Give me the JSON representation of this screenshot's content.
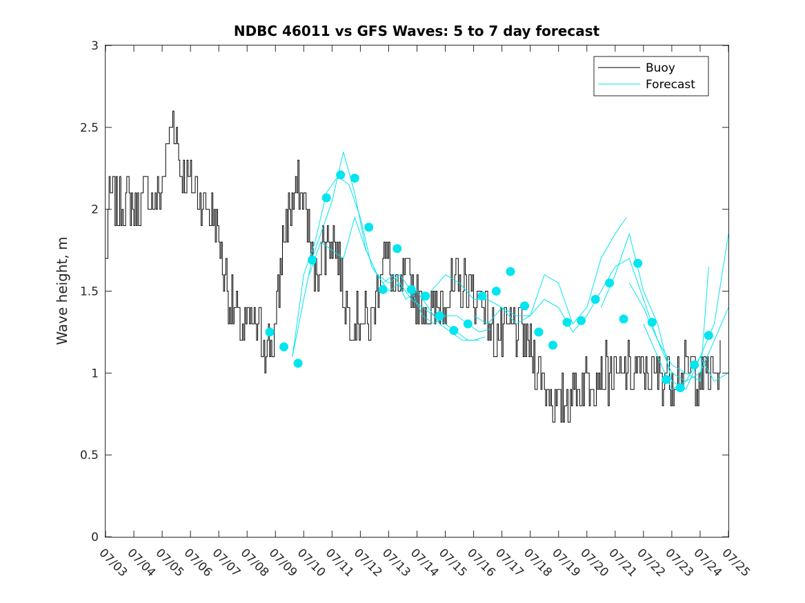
{
  "chart_data": {
    "type": "line",
    "title": "NDBC 46011 vs GFS Waves: 5 to 7 day forecast",
    "xlabel": "",
    "ylabel": "Wave height, m",
    "xlim": [
      "07/03",
      "07/25"
    ],
    "ylim": [
      0,
      3
    ],
    "x_tick_labels": [
      "07/03",
      "07/04",
      "07/05",
      "07/06",
      "07/07",
      "07/08",
      "07/09",
      "07/10",
      "07/11",
      "07/12",
      "07/13",
      "07/14",
      "07/15",
      "07/16",
      "07/17",
      "07/18",
      "07/19",
      "07/20",
      "07/21",
      "07/22",
      "07/23",
      "07/24",
      "07/25"
    ],
    "y_ticks": [
      0,
      0.5,
      1,
      1.5,
      2,
      2.5,
      3
    ],
    "y_tick_labels": [
      "0",
      "0.5",
      "1",
      "1.5",
      "2",
      "2.5",
      "3"
    ],
    "grid": false,
    "legend": {
      "placement": "top-right",
      "entries": [
        "Buoy",
        "Forecast"
      ]
    },
    "colors": {
      "buoy": "#000000",
      "forecast": "#00e5ee",
      "axes": "#262626"
    },
    "buoy_keypoints": {
      "x_days": [
        0,
        0.1,
        0.25,
        0.5,
        0.75,
        1.0,
        1.2,
        1.5,
        1.75,
        2.0,
        2.2,
        2.4,
        2.5,
        2.6,
        2.75,
        3.0,
        3.25,
        3.5,
        3.75,
        4.0,
        4.2,
        4.4,
        4.6,
        4.8,
        5.0,
        5.2,
        5.4,
        5.6,
        5.8,
        6.0,
        6.2,
        6.4,
        6.6,
        6.8,
        7.0,
        7.2,
        7.4,
        7.6,
        7.8,
        8.0,
        8.2,
        8.4,
        8.6,
        8.8,
        9.0,
        9.2,
        9.4,
        9.6,
        9.8,
        10.0,
        10.3,
        10.6,
        11.0,
        11.3,
        11.6,
        12.0,
        12.3,
        12.6,
        13.0,
        13.3,
        13.6,
        14.0,
        14.3,
        14.6,
        15.0,
        15.3,
        15.6,
        16.0,
        16.3,
        16.6,
        17.0,
        17.3,
        17.6,
        18.0,
        18.3,
        18.6,
        19.0,
        19.3,
        19.6,
        20.0,
        20.3,
        20.6,
        21.0,
        21.3,
        21.6,
        22.0
      ],
      "y": [
        1.65,
        2.0,
        2.1,
        2.0,
        2.1,
        2.0,
        2.05,
        2.1,
        2.0,
        2.15,
        2.4,
        2.55,
        2.45,
        2.3,
        2.2,
        2.15,
        2.1,
        2.05,
        2.0,
        1.8,
        1.6,
        1.45,
        1.35,
        1.25,
        1.3,
        1.3,
        1.25,
        1.2,
        1.15,
        1.25,
        1.7,
        1.95,
        2.05,
        2.1,
        2.05,
        1.8,
        1.6,
        1.75,
        1.8,
        1.85,
        1.7,
        1.5,
        1.35,
        1.3,
        1.35,
        1.3,
        1.3,
        1.55,
        1.75,
        1.65,
        1.45,
        1.6,
        1.45,
        1.4,
        1.35,
        1.5,
        1.5,
        1.55,
        1.45,
        1.5,
        1.25,
        1.2,
        1.3,
        1.25,
        1.15,
        1.0,
        0.9,
        0.8,
        0.85,
        0.9,
        0.95,
        1.0,
        1.0,
        0.95,
        1.0,
        1.0,
        1.0,
        1.0,
        1.0,
        1.0,
        1.0,
        1.0,
        1.0,
        1.0,
        1.0,
        1.0
      ]
    },
    "forecast_markers": {
      "x_days": [
        5.8,
        6.3,
        6.8,
        7.3,
        7.8,
        8.3,
        8.8,
        9.3,
        9.8,
        10.3,
        10.8,
        11.3,
        11.8,
        12.3,
        12.8,
        13.3,
        13.8,
        14.3,
        14.8,
        15.3,
        15.8,
        16.3,
        16.8,
        17.3,
        17.8,
        18.3,
        18.8,
        19.3,
        19.8,
        20.3,
        20.8,
        21.3
      ],
      "y": [
        1.25,
        1.16,
        1.06,
        1.69,
        2.07,
        2.21,
        2.19,
        1.89,
        1.51,
        1.76,
        1.51,
        1.47,
        1.35,
        1.26,
        1.3,
        1.47,
        1.5,
        1.62,
        1.41,
        1.25,
        1.17,
        1.31,
        1.32,
        1.45,
        1.55,
        1.33,
        1.67,
        1.31,
        0.96,
        0.91,
        1.05,
        1.23
      ]
    },
    "forecast_series": [
      {
        "x_days": [
          6.6,
          7.0,
          7.3,
          7.6,
          8.0,
          8.4,
          8.8,
          9.2,
          9.6,
          10.0,
          10.4,
          10.8,
          11.2,
          11.6,
          12.0,
          12.4,
          12.8,
          13.2
        ],
        "y": [
          1.1,
          1.45,
          1.7,
          1.85,
          2.05,
          2.35,
          2.1,
          1.75,
          1.6,
          1.5,
          1.55,
          1.45,
          1.4,
          1.35,
          1.3,
          1.25,
          1.2,
          1.2
        ]
      },
      {
        "x_days": [
          6.6,
          7.0,
          7.4,
          7.8,
          8.2,
          8.6,
          9.0,
          9.4,
          9.8,
          10.2,
          10.6,
          11.0,
          11.4,
          11.8,
          12.2,
          12.6,
          13.0,
          13.4
        ],
        "y": [
          1.1,
          1.6,
          1.8,
          2.1,
          2.2,
          2.15,
          1.95,
          1.65,
          1.55,
          1.6,
          1.45,
          1.5,
          1.4,
          1.3,
          1.25,
          1.2,
          1.2,
          1.22
        ]
      },
      {
        "x_days": [
          7.2,
          7.6,
          8.0,
          8.4,
          8.8,
          9.2,
          9.6,
          10.0,
          10.4,
          10.8,
          11.2,
          11.6,
          12.0,
          12.4,
          12.8,
          13.2,
          13.6
        ],
        "y": [
          1.6,
          1.8,
          1.75,
          1.7,
          1.95,
          1.75,
          1.6,
          1.55,
          1.6,
          1.5,
          1.35,
          1.3,
          1.35,
          1.35,
          1.3,
          1.25,
          1.27
        ]
      },
      {
        "x_days": [
          11.5,
          12.0,
          12.5,
          13.0,
          13.5,
          14.0,
          14.5,
          15.0,
          15.5,
          16.0,
          16.5,
          17.0,
          17.5,
          18.0,
          18.4
        ],
        "y": [
          1.5,
          1.6,
          1.55,
          1.45,
          1.45,
          1.4,
          1.35,
          1.35,
          1.6,
          1.55,
          1.3,
          1.4,
          1.7,
          1.85,
          1.95
        ]
      },
      {
        "x_days": [
          13.0,
          13.5,
          14.0,
          14.5,
          15.0,
          15.5,
          16.0,
          16.5,
          17.0,
          17.5,
          18.0,
          18.5,
          19.0,
          19.5,
          20.0,
          20.5,
          21.0,
          21.3
        ],
        "y": [
          1.35,
          1.3,
          1.4,
          1.3,
          1.35,
          1.45,
          1.4,
          1.25,
          1.35,
          1.5,
          1.65,
          1.7,
          1.45,
          1.2,
          1.05,
          1.0,
          0.95,
          1.65
        ]
      },
      {
        "x_days": [
          17.5,
          18.0,
          18.5,
          19.0,
          19.5,
          20.0,
          20.5,
          21.0,
          21.5,
          22.0
        ],
        "y": [
          1.4,
          1.6,
          1.85,
          1.5,
          1.3,
          0.95,
          0.9,
          1.1,
          1.3,
          1.85
        ]
      },
      {
        "x_days": [
          18.5,
          19.0,
          19.5,
          20.0,
          20.5,
          21.0,
          21.5,
          22.0
        ],
        "y": [
          1.55,
          1.4,
          1.2,
          1.0,
          0.95,
          1.0,
          1.2,
          1.4
        ]
      },
      {
        "x_days": [
          19.0,
          19.5,
          20.0,
          20.5,
          21.0,
          21.5,
          22.0
        ],
        "y": [
          1.3,
          1.1,
          0.9,
          0.95,
          1.1,
          0.95,
          1.0
        ]
      }
    ]
  }
}
